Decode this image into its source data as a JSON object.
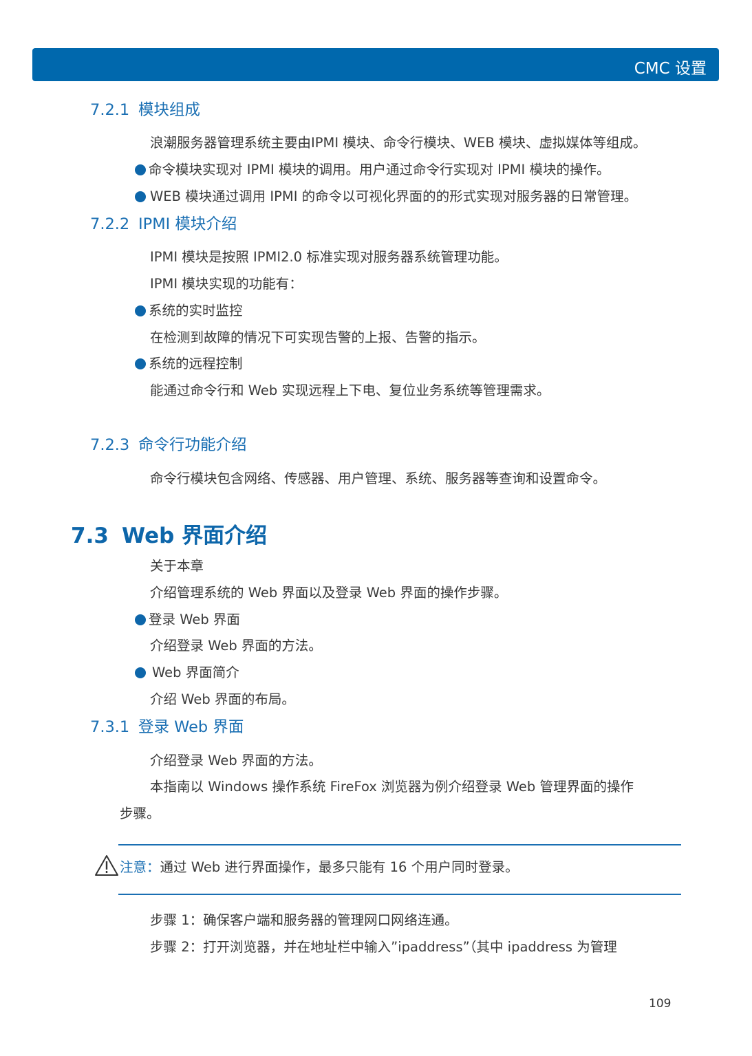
{
  "header": {
    "title": "CMC 设置"
  },
  "s721": {
    "num": "7.2.1",
    "title": "模块组成",
    "p1": "浪潮服务器管理系统主要由IPMI 模块、命令行模块、WEB 模块、虚拟媒体等组成。",
    "b1": "命令模块实现对 IPMI 模块的调用。用户通过命令行实现对 IPMI 模块的操作。",
    "b2": "WEB 模块通过调用 IPMI 的命令以可视化界面的的形式实现对服务器的日常管理。"
  },
  "s722": {
    "num": "7.2.2",
    "title": "IPMI 模块介绍",
    "p1": "IPMI 模块是按照 IPMI2.0 标准实现对服务器系统管理功能。",
    "p2": "IPMI 模块实现的功能有：",
    "b1": "系统的实时监控",
    "p3": "在检测到故障的情况下可实现告警的上报、告警的指示。",
    "b2": "系统的远程控制",
    "p4": "能通过命令行和 Web 实现远程上下电、复位业务系统等管理需求。"
  },
  "s723": {
    "num": "7.2.3",
    "title": "命令行功能介绍",
    "p1": "命令行模块包含网络、传感器、用户管理、系统、服务器等查询和设置命令。"
  },
  "s73": {
    "num": "7.3",
    "title": "Web 界面介绍",
    "p1": "关于本章",
    "p2": "介绍管理系统的 Web 界面以及登录 Web 界面的操作步骤。",
    "b1": "登录 Web 界面",
    "p3": "介绍登录 Web 界面的方法。",
    "b2": "Web 界面简介",
    "p4": "介绍 Web 界面的布局。"
  },
  "s731": {
    "num": "7.3.1",
    "title": "登录 Web 界面",
    "p1": "介绍登录 Web 界面的方法。",
    "p2": "本指南以 Windows 操作系统 FireFox 浏览器为例介绍登录 Web 管理界面的操作",
    "p2b": "步骤。",
    "note_label": "注意：",
    "note_text": "通过 Web 进行界面操作，最多只能有 16 个用户同时登录。",
    "step1": "步骤 1：确保客户端和服务器的管理网口网络连通。",
    "step2": "步骤 2：打开浏览器，并在地址栏中输入”ipaddress”（其中 ipaddress 为管理"
  },
  "page_number": "109",
  "icons": {
    "note": "warning-triangle-icon",
    "bullet": "bullet-dot-icon"
  },
  "colors": {
    "header": "#0068ad",
    "heading": "#1a6fb3"
  }
}
